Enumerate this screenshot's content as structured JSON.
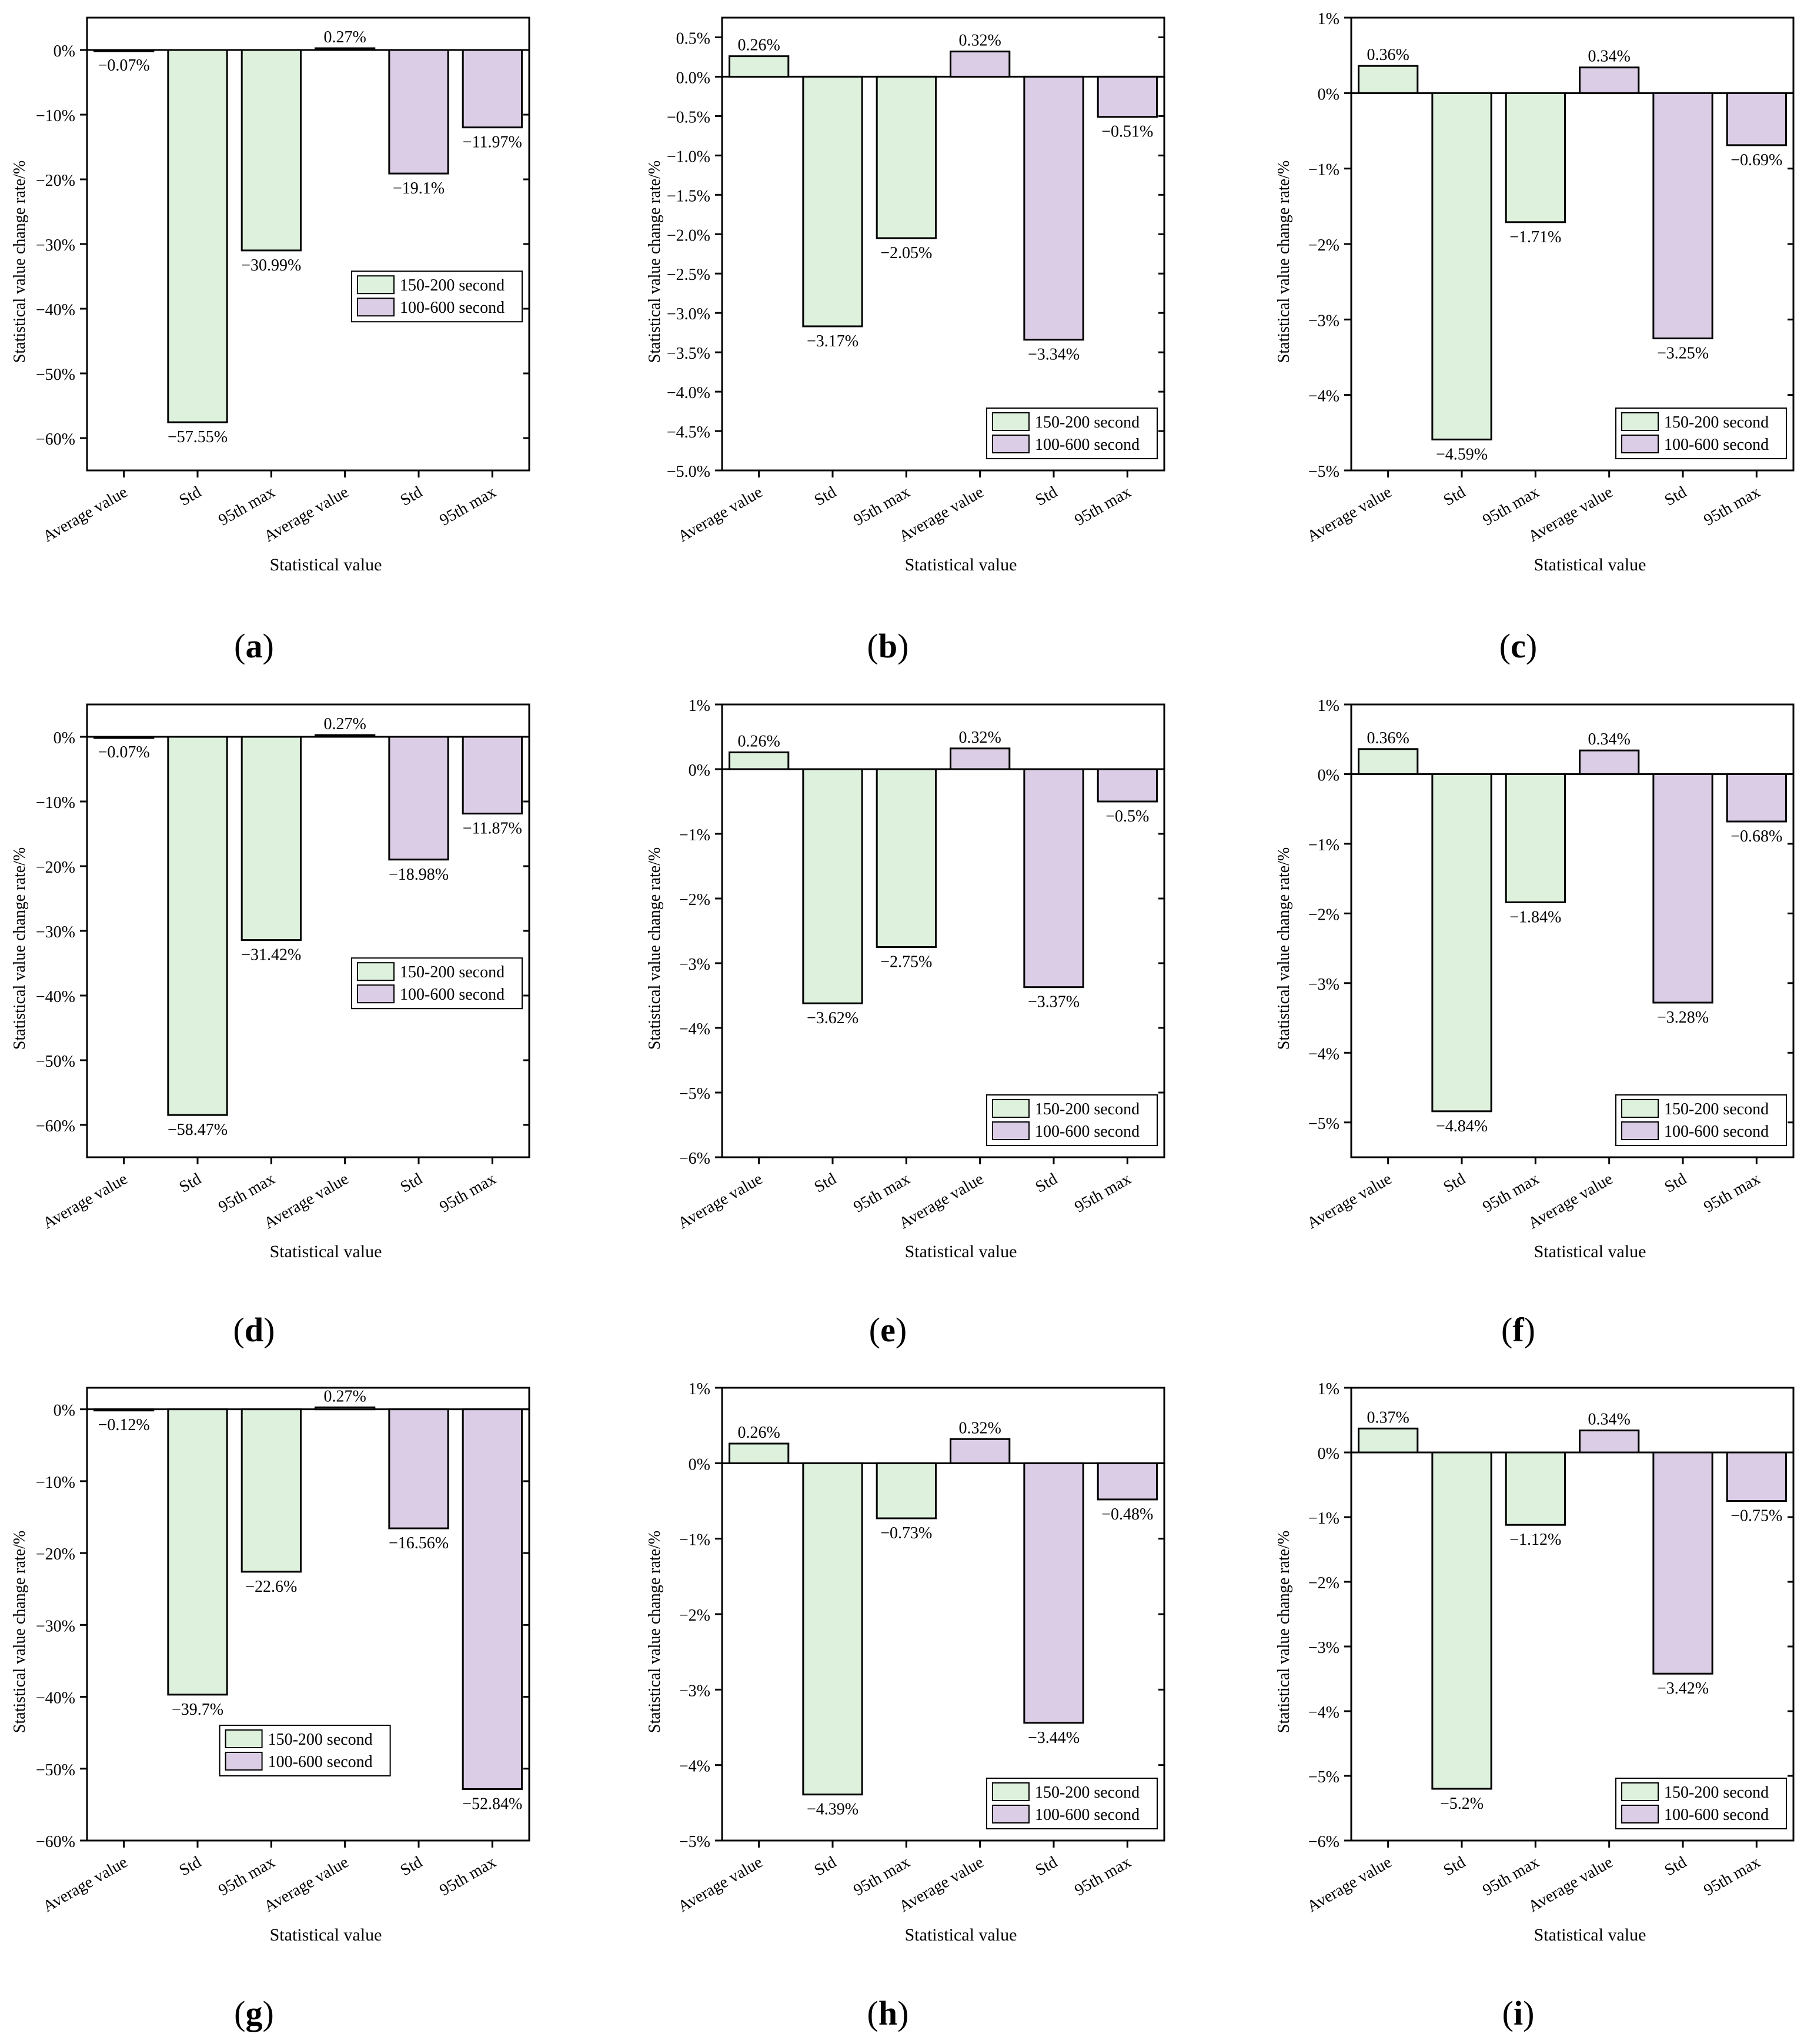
{
  "legend": {
    "s1": "150-200 second",
    "s2": "100-600 second"
  },
  "axis": {
    "xlabel": "Statistical value",
    "ylabel": "Statistical value change rate/%"
  },
  "colors": {
    "s1": "#DDF1DD",
    "s2": "#DCCDE6",
    "edge": "#000000",
    "axis": "#000000"
  },
  "captions": [
    "a",
    "b",
    "c",
    "d",
    "e",
    "f",
    "g",
    "h",
    "i"
  ],
  "chart_data": [
    {
      "id": "a",
      "type": "bar",
      "title": "(a)",
      "xlabel": "Statistical value",
      "ylabel": "Statistical value change rate/%",
      "categories": [
        "Average value",
        "Std",
        "95th max",
        "Average value",
        "Std",
        "95th max"
      ],
      "values": [
        -0.07,
        -57.55,
        -30.99,
        0.27,
        -19.1,
        -11.97
      ],
      "series_index": [
        0,
        0,
        0,
        1,
        1,
        1
      ],
      "labels": [
        "−0.07%",
        "−57.55%",
        "−30.99%",
        "0.27%",
        "−19.1%",
        "−11.97%"
      ],
      "ylim": [
        -65,
        5
      ],
      "ticks": [
        0,
        -10,
        -20,
        -30,
        -40,
        -50,
        -60
      ],
      "tick_labels": [
        "0%",
        "−10%",
        "−20%",
        "−30%",
        "−40%",
        "−50%",
        "−60%"
      ],
      "legend_pos": "middle-right"
    },
    {
      "id": "b",
      "type": "bar",
      "title": "(b)",
      "xlabel": "Statistical value",
      "ylabel": "Statistical value change rate/%",
      "categories": [
        "Average value",
        "Std",
        "95th max",
        "Average value",
        "Std",
        "95th max"
      ],
      "values": [
        0.26,
        -3.17,
        -2.05,
        0.32,
        -3.34,
        -0.51
      ],
      "series_index": [
        0,
        0,
        0,
        1,
        1,
        1
      ],
      "labels": [
        "0.26%",
        "−3.17%",
        "−2.05%",
        "0.32%",
        "−3.34%",
        "−0.51%"
      ],
      "ylim": [
        -5,
        0.75
      ],
      "ticks": [
        0.5,
        0,
        -0.5,
        -1,
        -1.5,
        -2,
        -2.5,
        -3,
        -3.5,
        -4,
        -4.5,
        -5
      ],
      "tick_labels": [
        "0.5%",
        "0.0%",
        "−0.5%",
        "−1.0%",
        "−1.5%",
        "−2.0%",
        "−2.5%",
        "−3.0%",
        "−3.5%",
        "−4.0%",
        "−4.5%",
        "−5.0%"
      ],
      "legend_pos": "bottom-right"
    },
    {
      "id": "c",
      "type": "bar",
      "title": "(c)",
      "xlabel": "Statistical value",
      "ylabel": "Statistical value change rate/%",
      "categories": [
        "Average value",
        "Std",
        "95th max",
        "Average value",
        "Std",
        "95th max"
      ],
      "values": [
        0.36,
        -4.59,
        -1.71,
        0.34,
        -3.25,
        -0.69
      ],
      "series_index": [
        0,
        0,
        0,
        1,
        1,
        1
      ],
      "labels": [
        "0.36%",
        "−4.59%",
        "−1.71%",
        "0.34%",
        "−3.25%",
        "−0.69%"
      ],
      "ylim": [
        -5,
        1
      ],
      "ticks": [
        1,
        0,
        -1,
        -2,
        -3,
        -4,
        -5
      ],
      "tick_labels": [
        "1%",
        "0%",
        "−1%",
        "−2%",
        "−3%",
        "−4%",
        "−5%"
      ],
      "legend_pos": "bottom-right"
    },
    {
      "id": "d",
      "type": "bar",
      "title": "(d)",
      "xlabel": "Statistical value",
      "ylabel": "Statistical value change rate/%",
      "categories": [
        "Average value",
        "Std",
        "95th max",
        "Average value",
        "Std",
        "95th max"
      ],
      "values": [
        -0.07,
        -58.47,
        -31.42,
        0.27,
        -18.98,
        -11.87
      ],
      "series_index": [
        0,
        0,
        0,
        1,
        1,
        1
      ],
      "labels": [
        "−0.07%",
        "−58.47%",
        "−31.42%",
        "0.27%",
        "−18.98%",
        "−11.87%"
      ],
      "ylim": [
        -65,
        5
      ],
      "ticks": [
        0,
        -10,
        -20,
        -30,
        -40,
        -50,
        -60
      ],
      "tick_labels": [
        "0%",
        "−10%",
        "−20%",
        "−30%",
        "−40%",
        "−50%",
        "−60%"
      ],
      "legend_pos": "middle-right"
    },
    {
      "id": "e",
      "type": "bar",
      "title": "(e)",
      "xlabel": "Statistical value",
      "ylabel": "Statistical value change rate/%",
      "categories": [
        "Average value",
        "Std",
        "95th max",
        "Average value",
        "Std",
        "95th max"
      ],
      "values": [
        0.26,
        -3.62,
        -2.75,
        0.32,
        -3.37,
        -0.5
      ],
      "series_index": [
        0,
        0,
        0,
        1,
        1,
        1
      ],
      "labels": [
        "0.26%",
        "−3.62%",
        "−2.75%",
        "0.32%",
        "−3.37%",
        "−0.5%"
      ],
      "ylim": [
        -6,
        1
      ],
      "ticks": [
        1,
        0,
        -1,
        -2,
        -3,
        -4,
        -5,
        -6
      ],
      "tick_labels": [
        "1%",
        "0%",
        "−1%",
        "−2%",
        "−3%",
        "−4%",
        "−5%",
        "−6%"
      ],
      "legend_pos": "bottom-right"
    },
    {
      "id": "f",
      "type": "bar",
      "title": "(f)",
      "xlabel": "Statistical value",
      "ylabel": "Statistical value change rate/%",
      "categories": [
        "Average value",
        "Std",
        "95th max",
        "Average value",
        "Std",
        "95th max"
      ],
      "values": [
        0.36,
        -4.84,
        -1.84,
        0.34,
        -3.28,
        -0.68
      ],
      "series_index": [
        0,
        0,
        0,
        1,
        1,
        1
      ],
      "labels": [
        "0.36%",
        "−4.84%",
        "−1.84%",
        "0.34%",
        "−3.28%",
        "−0.68%"
      ],
      "ylim": [
        -5.5,
        1
      ],
      "ticks": [
        1,
        0,
        -1,
        -2,
        -3,
        -4,
        -5
      ],
      "tick_labels": [
        "1%",
        "0%",
        "−1%",
        "−2%",
        "−3%",
        "−4%",
        "−5%"
      ],
      "legend_pos": "bottom-right"
    },
    {
      "id": "g",
      "type": "bar",
      "title": "(g)",
      "xlabel": "Statistical value",
      "ylabel": "Statistical value change rate/%",
      "categories": [
        "Average value",
        "Std",
        "95th max",
        "Average value",
        "Std",
        "95th max"
      ],
      "values": [
        -0.12,
        -39.7,
        -22.6,
        0.27,
        -16.56,
        -52.84
      ],
      "series_index": [
        0,
        0,
        0,
        1,
        1,
        1
      ],
      "labels": [
        "−0.12%",
        "−39.7%",
        "−22.6%",
        "0.27%",
        "−16.56%",
        "−52.84%"
      ],
      "ylim": [
        -60,
        3
      ],
      "ticks": [
        0,
        -10,
        -20,
        -30,
        -40,
        -50,
        -60
      ],
      "tick_labels": [
        "0%",
        "−10%",
        "−20%",
        "−30%",
        "−40%",
        "−50%",
        "−60%"
      ],
      "legend_pos": "bottom-center"
    },
    {
      "id": "h",
      "type": "bar",
      "title": "(h)",
      "xlabel": "Statistical value",
      "ylabel": "Statistical value change rate/%",
      "categories": [
        "Average value",
        "Std",
        "95th max",
        "Average value",
        "Std",
        "95th max"
      ],
      "values": [
        0.26,
        -4.39,
        -0.73,
        0.32,
        -3.44,
        -0.48
      ],
      "series_index": [
        0,
        0,
        0,
        1,
        1,
        1
      ],
      "labels": [
        "0.26%",
        "−4.39%",
        "−0.73%",
        "0.32%",
        "−3.44%",
        "−0.48%"
      ],
      "ylim": [
        -5,
        1
      ],
      "ticks": [
        1,
        0,
        -1,
        -2,
        -3,
        -4,
        -5
      ],
      "tick_labels": [
        "1%",
        "0%",
        "−1%",
        "−2%",
        "−3%",
        "−4%",
        "−5%"
      ],
      "legend_pos": "bottom-right"
    },
    {
      "id": "i",
      "type": "bar",
      "title": "(i)",
      "xlabel": "Statistical value",
      "ylabel": "Statistical value change rate/%",
      "categories": [
        "Average value",
        "Std",
        "95th max",
        "Average value",
        "Std",
        "95th max"
      ],
      "values": [
        0.37,
        -5.2,
        -1.12,
        0.34,
        -3.42,
        -0.75
      ],
      "series_index": [
        0,
        0,
        0,
        1,
        1,
        1
      ],
      "labels": [
        "0.37%",
        "−5.2%",
        "−1.12%",
        "0.34%",
        "−3.42%",
        "−0.75%"
      ],
      "ylim": [
        -6,
        1
      ],
      "ticks": [
        1,
        0,
        -1,
        -2,
        -3,
        -4,
        -5,
        -6
      ],
      "tick_labels": [
        "1%",
        "0%",
        "−1%",
        "−2%",
        "−3%",
        "−4%",
        "−5%",
        "−6%"
      ],
      "legend_pos": "bottom-right"
    }
  ]
}
